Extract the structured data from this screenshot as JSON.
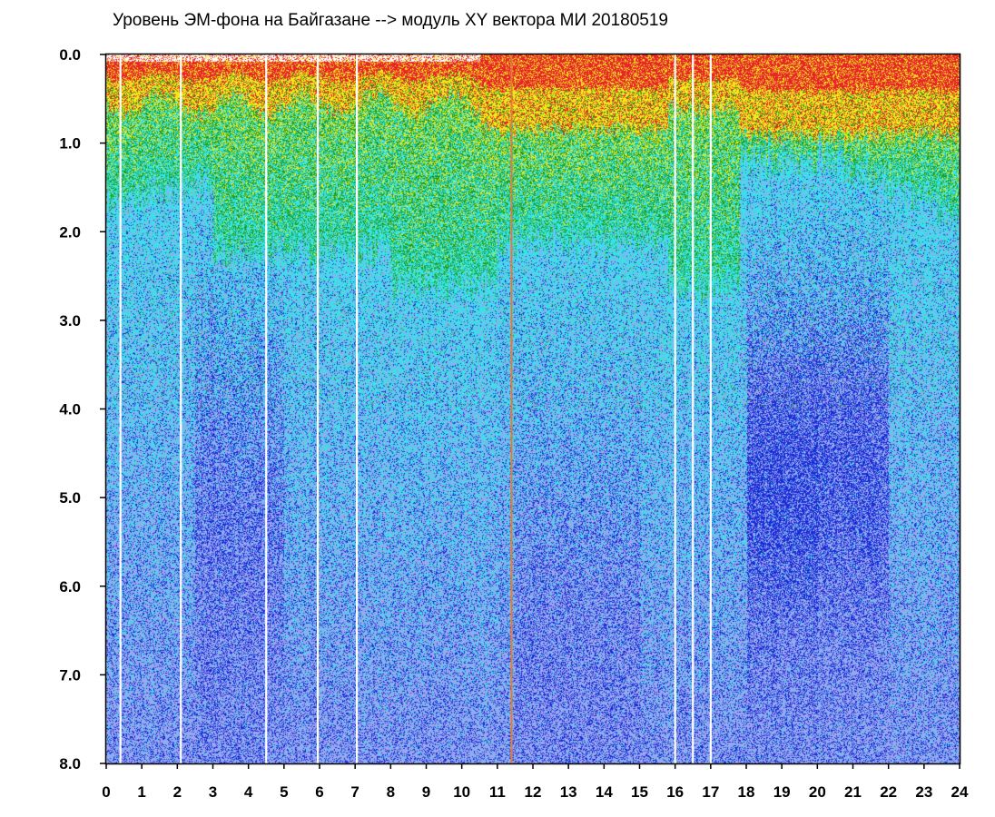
{
  "chart_data": {
    "type": "heatmap",
    "title": "Уровень ЭМ-фона на Байгазане  --> модуль XY вектора МИ  20180519",
    "x_ticks": [
      "0",
      "1",
      "2",
      "3",
      "4",
      "5",
      "6",
      "7",
      "8",
      "9",
      "10",
      "11",
      "12",
      "13",
      "14",
      "15",
      "16",
      "17",
      "18",
      "19",
      "20",
      "21",
      "22",
      "23",
      "24"
    ],
    "y_ticks": [
      "0.0",
      "1.0",
      "2.0",
      "3.0",
      "4.0",
      "5.0",
      "6.0",
      "7.0",
      "8.0"
    ],
    "xlim": [
      0,
      24
    ],
    "ylim": [
      0,
      8
    ],
    "y_inverted": true,
    "grid": false,
    "color_scale": [
      "#e8232a",
      "#f4e81c",
      "#1f9f1f",
      "#36e3e8",
      "#9aa6ee",
      "#1a2bd8"
    ],
    "background_color": "#ffffff",
    "gaps": [
      0.4,
      2.1,
      4.5,
      5.95,
      7.05,
      11.4,
      16.0,
      16.5,
      17.0
    ]
  }
}
